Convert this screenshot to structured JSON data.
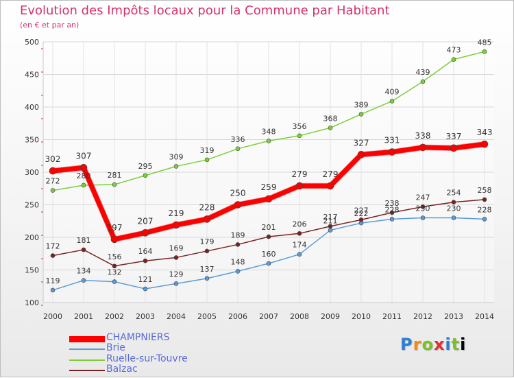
{
  "title": "Evolution des Impôts locaux pour la Commune par Habitant",
  "subtitle": "(en € et par an)",
  "logo": [
    "P",
    "r",
    "o",
    "x",
    "i",
    "t",
    "i"
  ],
  "chart_data": {
    "type": "line",
    "title": "Evolution des Impôts locaux pour la Commune par Habitant",
    "subtitle": "(en € et par an)",
    "xlabel": "",
    "ylabel": "",
    "ylim": [
      100,
      500
    ],
    "yticks": [
      100,
      150,
      200,
      250,
      300,
      350,
      400,
      450,
      500
    ],
    "categories": [
      "2000",
      "2001",
      "2002",
      "2003",
      "2004",
      "2005",
      "2006",
      "2007",
      "2008",
      "2009",
      "2010",
      "2011",
      "2012",
      "2013",
      "2014"
    ],
    "grid": true,
    "legend_position": "bottom-left",
    "series": [
      {
        "name": "CHAMPNIERS",
        "color": "#ff0000",
        "values": [
          302,
          307,
          197,
          207,
          219,
          228,
          250,
          259,
          279,
          279,
          327,
          331,
          338,
          337,
          343
        ],
        "labels": [
          "302",
          "307",
          "197",
          "207",
          "219",
          "228",
          "250",
          "259",
          "279",
          "279",
          "327",
          "331",
          "338",
          "337",
          "343"
        ]
      },
      {
        "name": "Brie",
        "color": "#5b9bd5",
        "values": [
          119,
          134,
          132,
          121,
          129,
          137,
          148,
          160,
          174,
          211,
          222,
          228,
          230,
          230,
          228
        ],
        "labels": [
          "119",
          "134",
          "132",
          "121",
          "129",
          "137",
          "148",
          "160",
          "174",
          "211",
          "222",
          "228",
          "230",
          "230",
          "228"
        ]
      },
      {
        "name": "Ruelle-sur-Touvre",
        "color": "#7dcf3a",
        "values": [
          272,
          280,
          281,
          295,
          309,
          319,
          336,
          348,
          356,
          368,
          389,
          409,
          439,
          473,
          485
        ],
        "labels": [
          "272",
          "280",
          "281",
          "295",
          "309",
          "319",
          "336",
          "348",
          "356",
          "368",
          "389",
          "409",
          "439",
          "473",
          "485"
        ]
      },
      {
        "name": "Balzac",
        "color": "#7a2222",
        "values": [
          172,
          181,
          156,
          164,
          169,
          179,
          189,
          201,
          206,
          217,
          227,
          238,
          247,
          254,
          258
        ],
        "labels": [
          "172",
          "181",
          "156",
          "164",
          "169",
          "179",
          "189",
          "201",
          "206",
          "217",
          "227",
          "238",
          "247",
          "254",
          "258"
        ]
      }
    ]
  }
}
